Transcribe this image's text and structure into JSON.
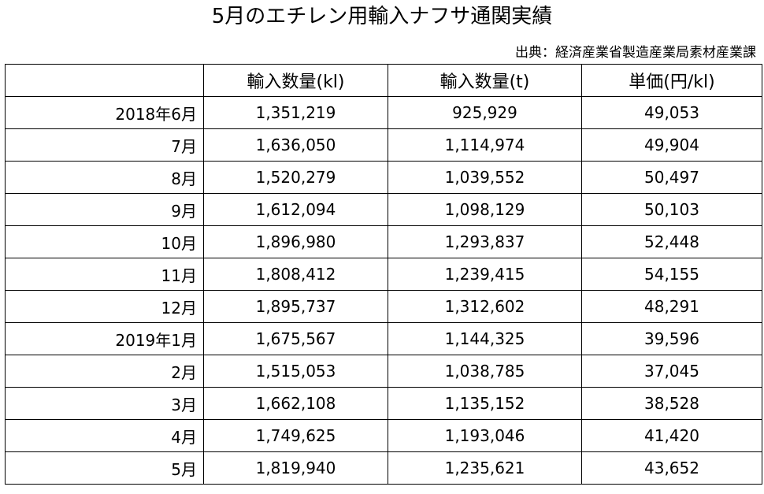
{
  "title": "5月のエチレン用輸入ナフサ通関実績",
  "source": "出典：経済産業省製造産業局素材産業課",
  "table": {
    "headers": [
      "",
      "輸入数量(kl)",
      "輸入数量(t)",
      "単価(円/kl)"
    ],
    "rows": [
      {
        "month": "2018年6月",
        "kl": "1,351,219",
        "t": "925,929",
        "price": "49,053"
      },
      {
        "month": "7月",
        "kl": "1,636,050",
        "t": "1,114,974",
        "price": "49,904"
      },
      {
        "month": "8月",
        "kl": "1,520,279",
        "t": "1,039,552",
        "price": "50,497"
      },
      {
        "month": "9月",
        "kl": "1,612,094",
        "t": "1,098,129",
        "price": "50,103"
      },
      {
        "month": "10月",
        "kl": "1,896,980",
        "t": "1,293,837",
        "price": "52,448"
      },
      {
        "month": "11月",
        "kl": "1,808,412",
        "t": "1,239,415",
        "price": "54,155"
      },
      {
        "month": "12月",
        "kl": "1,895,737",
        "t": "1,312,602",
        "price": "48,291"
      },
      {
        "month": "2019年1月",
        "kl": "1,675,567",
        "t": "1,144,325",
        "price": "39,596"
      },
      {
        "month": "2月",
        "kl": "1,515,053",
        "t": "1,038,785",
        "price": "37,045"
      },
      {
        "month": "3月",
        "kl": "1,662,108",
        "t": "1,135,152",
        "price": "38,528"
      },
      {
        "month": "4月",
        "kl": "1,749,625",
        "t": "1,193,046",
        "price": "41,420"
      },
      {
        "month": "5月",
        "kl": "1,819,940",
        "t": "1,235,621",
        "price": "43,652"
      }
    ]
  }
}
